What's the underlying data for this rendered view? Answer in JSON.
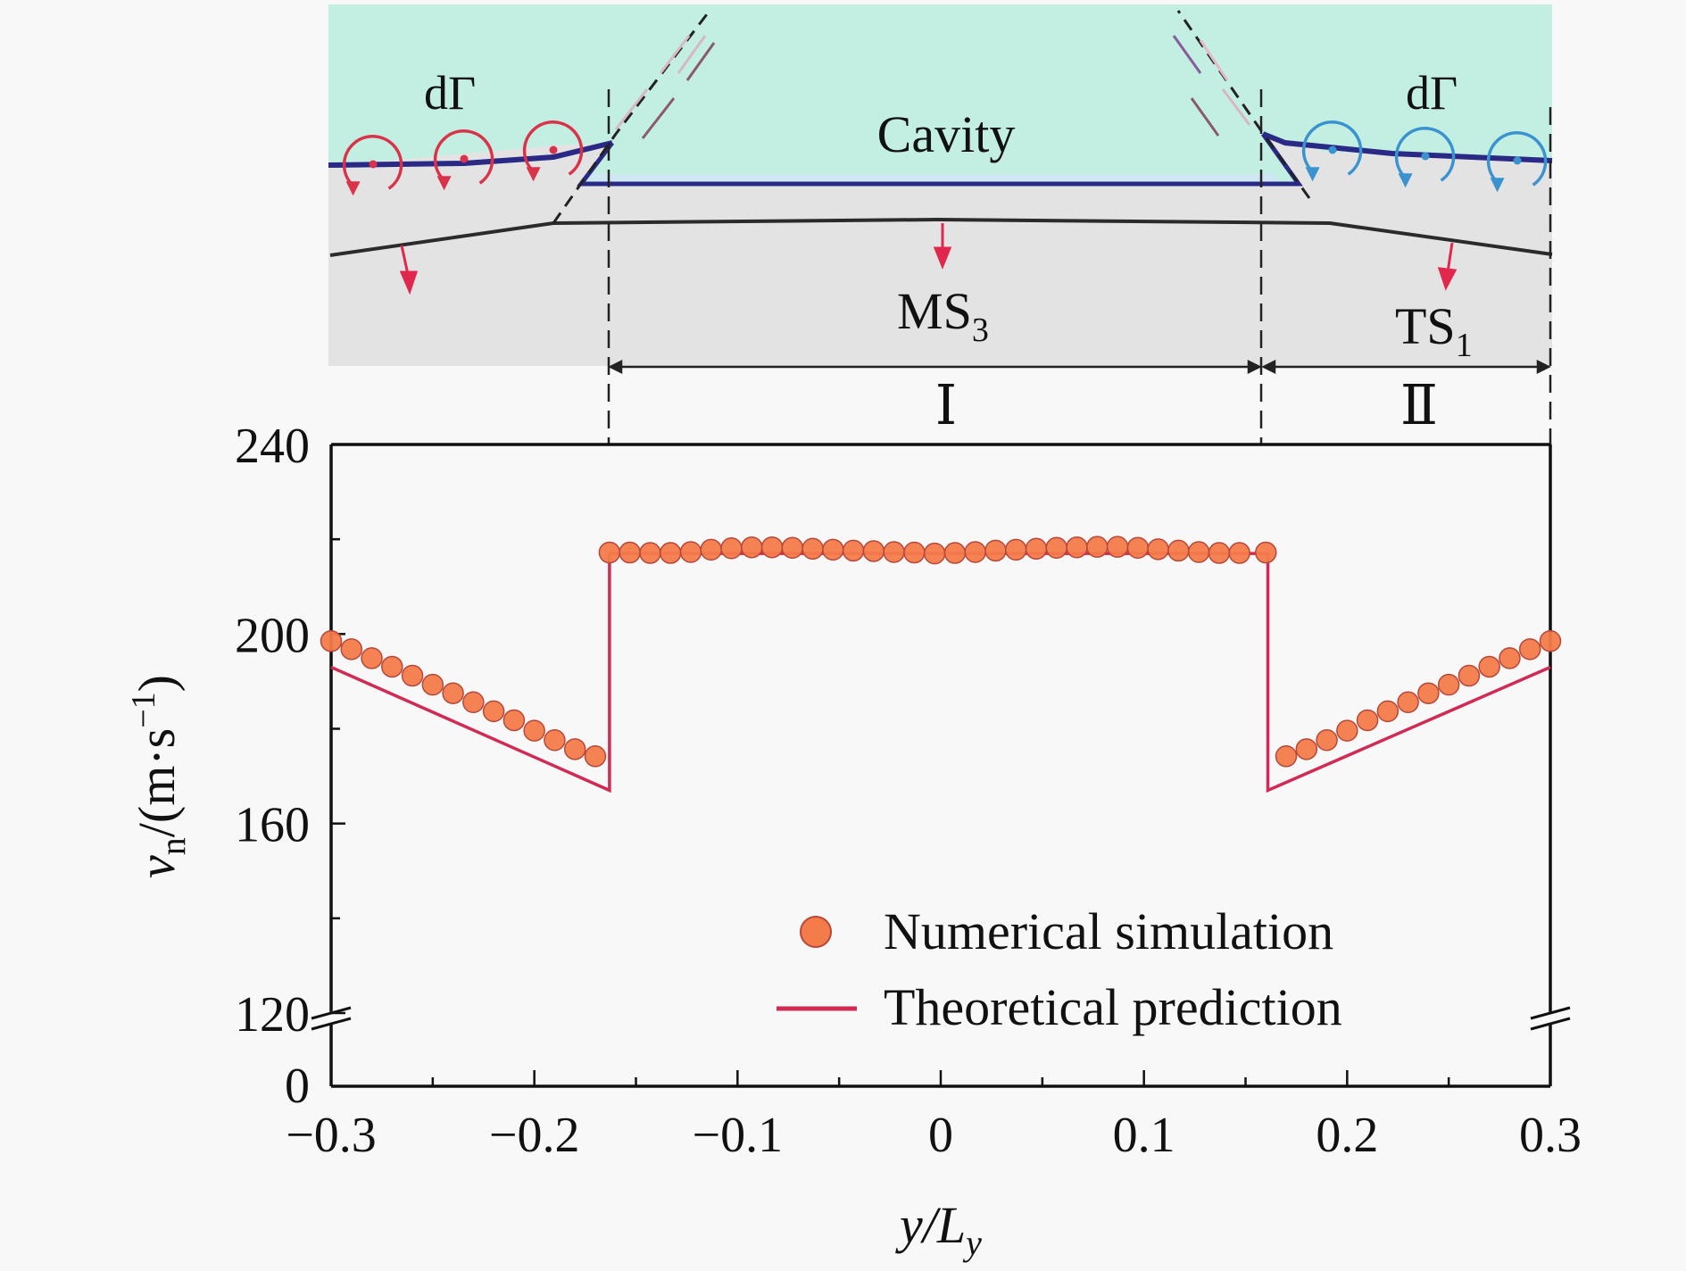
{
  "schematic": {
    "labels": {
      "cavity": "Cavity",
      "circulation_left": "dΓ",
      "circulation_right": "dΓ",
      "mid_shock": "MS",
      "mid_shock_sub": "3",
      "trans_shock": "TS",
      "trans_shock_sub": "1",
      "region_1": "Ⅰ",
      "region_2": "Ⅱ"
    },
    "colors": {
      "cavity_fill": "#c3efe3",
      "gas_fill": "#e3e3e3",
      "interface_line": "#2a2a86",
      "vortex_left": "#d9334a",
      "vortex_right": "#3a93cf",
      "arrow_red": "#e0284f",
      "shock_line": "#2b2b2b"
    }
  },
  "chart_data": {
    "type": "scatter",
    "title": "",
    "xlabel": "y/L",
    "xlabel_sub": "y",
    "ylabel": "v",
    "ylabel_sub": "n",
    "ylabel_unit": "/(m·s",
    "ylabel_unit_sup": "−1",
    "ylabel_unit_close": ")",
    "xlim": [
      -0.3,
      0.3
    ],
    "ylim_upper": [
      120,
      240
    ],
    "ylim_lower": [
      0,
      120
    ],
    "axis_break": true,
    "x_ticks": [
      -0.3,
      -0.2,
      -0.1,
      0,
      0.1,
      0.2,
      0.3
    ],
    "x_tick_labels": [
      "−0.3",
      "−0.2",
      "−0.1",
      "0",
      "0.1",
      "0.2",
      "0.3"
    ],
    "y_ticks": [
      120,
      160,
      200,
      240
    ],
    "y_tick_labels": [
      "120",
      "160",
      "200",
      "240"
    ],
    "y_tick_zero_label": "0",
    "legend_position": "bottom-right",
    "colors": {
      "marker_fill": "#f47b4a",
      "marker_edge": "#b7473a",
      "line": "#d02a55"
    },
    "series": [
      {
        "name": "Numerical simulation",
        "kind": "markers",
        "x": [
          -0.3,
          -0.29,
          -0.28,
          -0.27,
          -0.26,
          -0.25,
          -0.24,
          -0.23,
          -0.22,
          -0.21,
          -0.2,
          -0.19,
          -0.18,
          -0.17,
          -0.163,
          -0.153,
          -0.143,
          -0.133,
          -0.123,
          -0.113,
          -0.103,
          -0.093,
          -0.083,
          -0.073,
          -0.063,
          -0.053,
          -0.043,
          -0.033,
          -0.023,
          -0.013,
          -0.003,
          0.007,
          0.017,
          0.027,
          0.037,
          0.047,
          0.057,
          0.067,
          0.077,
          0.087,
          0.097,
          0.107,
          0.117,
          0.127,
          0.137,
          0.147,
          0.16,
          0.17,
          0.18,
          0.19,
          0.2,
          0.21,
          0.22,
          0.23,
          0.24,
          0.25,
          0.26,
          0.27,
          0.28,
          0.29,
          0.3
        ],
        "y": [
          198.5,
          196.8,
          194.9,
          193.1,
          191.2,
          189.3,
          187.5,
          185.6,
          183.7,
          181.8,
          179.6,
          177.6,
          175.7,
          174.2,
          217.2,
          217.2,
          217.1,
          217.1,
          217.3,
          217.8,
          218.1,
          218.3,
          218.3,
          218.2,
          218.0,
          217.8,
          217.6,
          217.5,
          217.3,
          217.2,
          217.0,
          217.1,
          217.3,
          217.6,
          217.8,
          218.0,
          218.2,
          218.3,
          218.4,
          218.4,
          218.2,
          217.9,
          217.6,
          217.3,
          217.1,
          217.1,
          217.2,
          174.2,
          175.7,
          177.6,
          179.6,
          181.8,
          183.7,
          185.6,
          187.5,
          189.3,
          191.2,
          193.1,
          194.9,
          196.8,
          198.5
        ]
      },
      {
        "name": "Theoretical prediction",
        "kind": "line",
        "x": [
          -0.3,
          -0.163,
          -0.163,
          0.161,
          0.161,
          0.3
        ],
        "y": [
          193.0,
          167.0,
          217.0,
          217.0,
          167.0,
          193.0
        ]
      }
    ]
  }
}
